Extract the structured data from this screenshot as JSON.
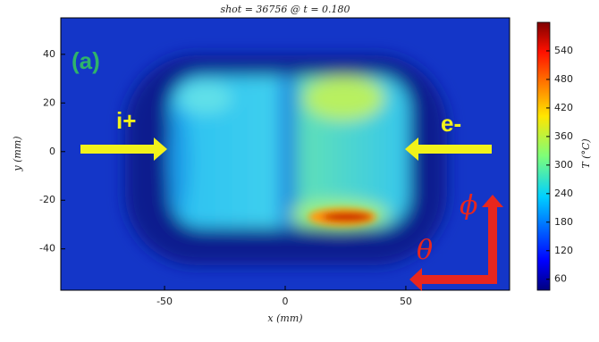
{
  "chart_data": {
    "type": "heatmap",
    "title": "shot = 36756 @ t = 0.180",
    "xlabel": "x (mm)",
    "ylabel": "y (mm)",
    "colorbar_label": "T (°C)",
    "xlim": [
      -93,
      93
    ],
    "ylim": [
      -57,
      55
    ],
    "xticks": [
      -50,
      0,
      50
    ],
    "yticks": [
      -40,
      -20,
      0,
      20,
      40
    ],
    "clim": [
      37,
      600
    ],
    "cticks": [
      60,
      120,
      180,
      240,
      300,
      360,
      420,
      480,
      540
    ],
    "colormap": "jet",
    "annotations": [
      {
        "text": "(a)",
        "color": "#2fb46a"
      },
      {
        "text": "i+",
        "color": "#f2f21a"
      },
      {
        "text": "e-",
        "color": "#f2f21a"
      },
      {
        "text": "ϕ",
        "color": "#e8261e"
      },
      {
        "text": "θ",
        "color": "#e8261e"
      }
    ]
  }
}
